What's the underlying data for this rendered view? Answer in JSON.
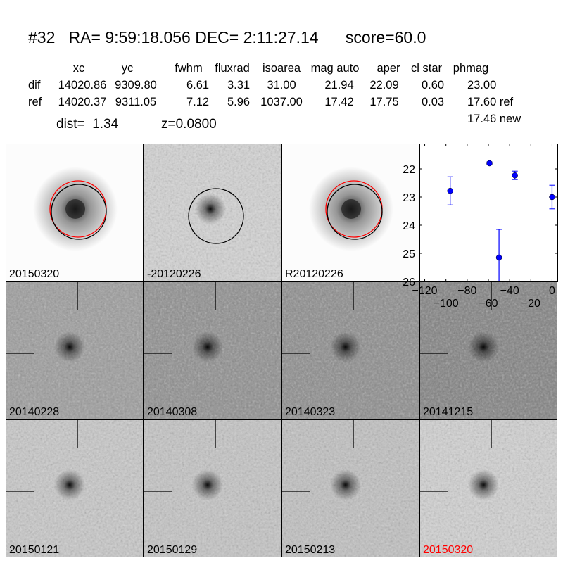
{
  "header": {
    "title": "#32   RA= 9:59:18.056 DEC= 2:11:27.14      score=60.0",
    "columns": [
      "xc",
      "yc",
      "fwhm",
      "fluxrad",
      "isoarea",
      "mag auto",
      "aper",
      "cl star",
      "phmag"
    ],
    "rows": [
      {
        "label": "dif",
        "values": [
          "14020.86",
          "9309.80",
          "6.61",
          "3.31",
          "31.00",
          "21.94",
          "22.09",
          "0.60",
          "23.00"
        ]
      },
      {
        "label": "ref",
        "values": [
          "14020.37",
          "9311.05",
          "7.12",
          "5.96",
          "1037.00",
          "17.42",
          "17.75",
          "0.03",
          "17.60 ref"
        ]
      }
    ],
    "new_mag": "17.46 new",
    "dist": "dist=  1.34",
    "z": "z=0.0800"
  },
  "stamps": [
    {
      "label": "20150320",
      "kind": "new",
      "circles": true
    },
    {
      "label": "-20120226",
      "kind": "diff",
      "circles": false
    },
    {
      "label": "R20120226",
      "kind": "ref",
      "circles": true
    },
    {
      "label": "20140228",
      "kind": "epoch"
    },
    {
      "label": "20140308",
      "kind": "epoch"
    },
    {
      "label": "20140323",
      "kind": "epoch"
    },
    {
      "label": "20141215",
      "kind": "epoch"
    },
    {
      "label": "20150121",
      "kind": "epoch"
    },
    {
      "label": "20150129",
      "kind": "epoch"
    },
    {
      "label": "20150213",
      "kind": "epoch"
    },
    {
      "label": "20150320",
      "kind": "epoch",
      "highlight": true
    }
  ],
  "colors": {
    "marker": "#0000ff",
    "highlight_label": "#ff0000",
    "aperture_ref": "#ff0000",
    "aperture_dif": "#000000"
  },
  "chart_data": {
    "type": "scatter",
    "error_bars": true,
    "x": [
      -96,
      -59,
      -50,
      -35,
      0
    ],
    "y": [
      22.78,
      21.8,
      25.15,
      22.23,
      23.0
    ],
    "yerr": [
      0.5,
      0.05,
      1.0,
      0.15,
      0.42
    ],
    "xlim": [
      -125,
      5
    ],
    "ylim": [
      26,
      21.1
    ],
    "y_inverted": true,
    "xticks": [
      "−120",
      "−100",
      "−80",
      "−60",
      "−40",
      "−20",
      "0"
    ],
    "xtick_values": [
      -120,
      -100,
      -80,
      -60,
      -40,
      -20,
      0
    ],
    "yticks": [
      "22",
      "23",
      "24",
      "25",
      "26"
    ],
    "ytick_values": [
      22,
      23,
      24,
      25,
      26
    ],
    "title": "",
    "xlabel": "",
    "ylabel": ""
  }
}
